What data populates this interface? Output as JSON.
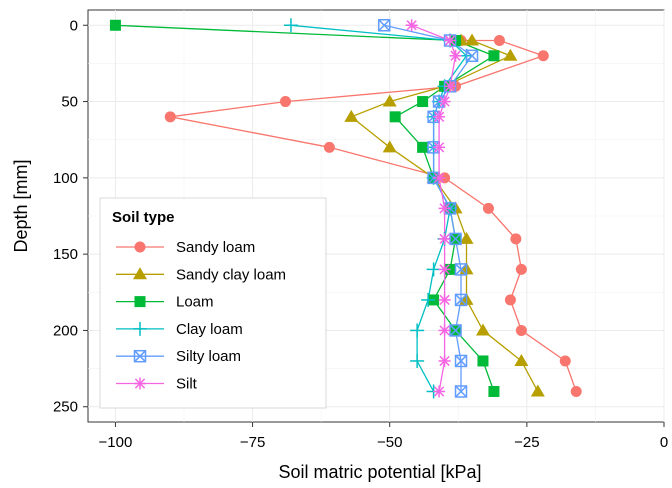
{
  "chart_data": {
    "type": "line",
    "title": "",
    "xlabel": "Soil matric potential [kPa]",
    "ylabel": "Depth [mm]",
    "xlim": [
      -105,
      0
    ],
    "ylim": [
      260,
      -10
    ],
    "y_reversed": true,
    "x_ticks": [
      -100,
      -75,
      -50,
      -25,
      0
    ],
    "x_tick_labels": [
      "−100",
      "−75",
      "−50",
      "−25",
      "0"
    ],
    "y_ticks": [
      0,
      50,
      100,
      150,
      200,
      250
    ],
    "y_tick_labels": [
      "0",
      "50",
      "100",
      "150",
      "200",
      "250"
    ],
    "grid": true,
    "legend": {
      "title": "Soil type",
      "position": "bottom-left"
    },
    "series": [
      {
        "name": "Sandy loam",
        "color": "#F8766D",
        "marker": "circle",
        "points": [
          [
            -37,
            10
          ],
          [
            -30,
            10
          ],
          [
            -22,
            20
          ],
          [
            -38,
            40
          ],
          [
            -69,
            50
          ],
          [
            -90,
            60
          ],
          [
            -61,
            80
          ],
          [
            -40,
            100
          ],
          [
            -32,
            120
          ],
          [
            -27,
            140
          ],
          [
            -26,
            160
          ],
          [
            -28,
            180
          ],
          [
            -26,
            200
          ],
          [
            -18,
            220
          ],
          [
            -16,
            240
          ]
        ]
      },
      {
        "name": "Sandy clay loam",
        "color": "#B79F00",
        "marker": "triangle",
        "points": [
          [
            -37,
            10
          ],
          [
            -35,
            10
          ],
          [
            -28,
            20
          ],
          [
            -40,
            40
          ],
          [
            -50,
            50
          ],
          [
            -57,
            60
          ],
          [
            -50,
            80
          ],
          [
            -42,
            100
          ],
          [
            -38,
            120
          ],
          [
            -36,
            140
          ],
          [
            -36,
            160
          ],
          [
            -36,
            180
          ],
          [
            -33,
            200
          ],
          [
            -26,
            220
          ],
          [
            -23,
            240
          ]
        ]
      },
      {
        "name": "Loam",
        "color": "#00BA38",
        "marker": "square",
        "points": [
          [
            -100,
            0
          ],
          [
            -38,
            10
          ],
          [
            -31,
            20
          ],
          [
            -40,
            40
          ],
          [
            -44,
            50
          ],
          [
            -49,
            60
          ],
          [
            -44,
            80
          ],
          [
            -42,
            100
          ],
          [
            -39,
            120
          ],
          [
            -38,
            140
          ],
          [
            -39,
            160
          ],
          [
            -42,
            180
          ],
          [
            -38,
            200
          ],
          [
            -33,
            220
          ],
          [
            -31,
            240
          ]
        ]
      },
      {
        "name": "Clay loam",
        "color": "#00BFC4",
        "marker": "plus",
        "points": [
          [
            -68,
            0
          ],
          [
            -39,
            10
          ],
          [
            -36,
            20
          ],
          [
            -40,
            40
          ],
          [
            -41,
            50
          ],
          [
            -42,
            60
          ],
          [
            -42,
            80
          ],
          [
            -42,
            100
          ],
          [
            -39,
            120
          ],
          [
            -40,
            140
          ],
          [
            -42,
            160
          ],
          [
            -43,
            180
          ],
          [
            -45,
            200
          ],
          [
            -45,
            220
          ],
          [
            -42,
            240
          ]
        ]
      },
      {
        "name": "Silty loam",
        "color": "#619CFF",
        "marker": "squarex",
        "points": [
          [
            -51,
            0
          ],
          [
            -39,
            10
          ],
          [
            -35,
            20
          ],
          [
            -39,
            40
          ],
          [
            -41,
            50
          ],
          [
            -42,
            60
          ],
          [
            -42,
            80
          ],
          [
            -42,
            100
          ],
          [
            -39,
            120
          ],
          [
            -38,
            140
          ],
          [
            -37,
            160
          ],
          [
            -37,
            180
          ],
          [
            -38,
            200
          ],
          [
            -37,
            220
          ],
          [
            -37,
            240
          ]
        ]
      },
      {
        "name": "Silt",
        "color": "#F564E3",
        "marker": "asterisk",
        "points": [
          [
            -46,
            0
          ],
          [
            -39,
            10
          ],
          [
            -38,
            20
          ],
          [
            -39,
            40
          ],
          [
            -40,
            50
          ],
          [
            -41,
            60
          ],
          [
            -41,
            80
          ],
          [
            -41,
            100
          ],
          [
            -40,
            120
          ],
          [
            -40,
            140
          ],
          [
            -40,
            160
          ],
          [
            -40,
            180
          ],
          [
            -40,
            200
          ],
          [
            -40,
            220
          ],
          [
            -41,
            240
          ]
        ]
      }
    ]
  }
}
